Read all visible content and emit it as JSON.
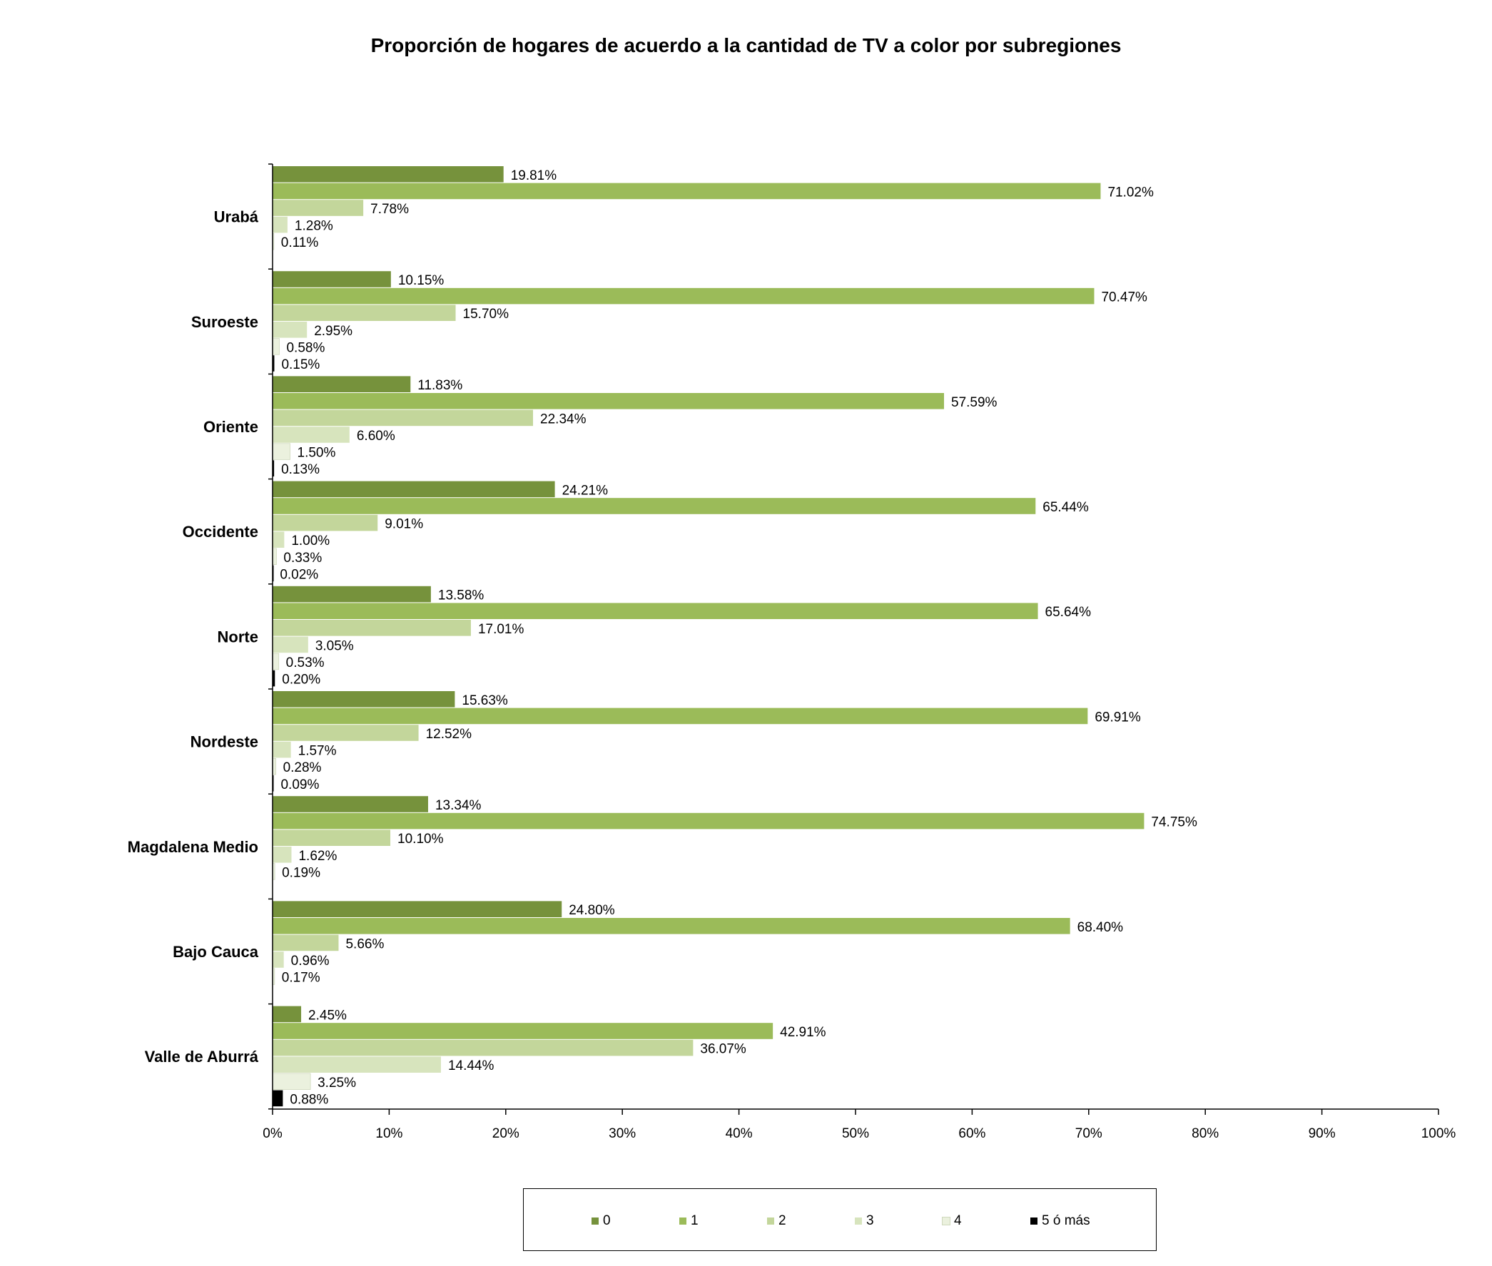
{
  "chart_data": {
    "type": "bar",
    "orientation": "horizontal",
    "title": "Proporción de hogares de acuerdo a la cantidad de TV a color por subregiones",
    "xlabel": "",
    "ylabel": "",
    "xlim": [
      0,
      100
    ],
    "x_ticks": [
      "0%",
      "10%",
      "20%",
      "30%",
      "40%",
      "50%",
      "60%",
      "70%",
      "80%",
      "90%",
      "100%"
    ],
    "grid": false,
    "legend_position": "bottom",
    "categories": [
      "Urabá",
      "Suroeste",
      "Oriente",
      "Occidente",
      "Norte",
      "Nordeste",
      "Magdalena Medio",
      "Bajo Cauca",
      "Valle de Aburrá"
    ],
    "series": [
      {
        "name": "0",
        "color": "#76923C",
        "values": [
          19.81,
          10.15,
          11.83,
          24.21,
          13.58,
          15.63,
          13.34,
          24.8,
          2.45
        ],
        "labels": [
          "19.81%",
          "10.15%",
          "11.83%",
          "24.21%",
          "13.58%",
          "15.63%",
          "13.34%",
          "24.80%",
          "2.45%"
        ]
      },
      {
        "name": "1",
        "color": "#9BBB59",
        "values": [
          71.02,
          70.47,
          57.59,
          65.44,
          65.64,
          69.91,
          74.75,
          68.4,
          42.91
        ],
        "labels": [
          "71.02%",
          "70.47%",
          "57.59%",
          "65.44%",
          "65.64%",
          "69.91%",
          "74.75%",
          "68.40%",
          "42.91%"
        ]
      },
      {
        "name": "2",
        "color": "#C3D69B",
        "values": [
          7.78,
          15.7,
          22.34,
          9.01,
          17.01,
          12.52,
          10.1,
          5.66,
          36.07
        ],
        "labels": [
          "7.78%",
          "15.70%",
          "22.34%",
          "9.01%",
          "17.01%",
          "12.52%",
          "10.10%",
          "5.66%",
          "36.07%"
        ]
      },
      {
        "name": "3",
        "color": "#D7E4BD",
        "values": [
          1.28,
          2.95,
          6.6,
          1.0,
          3.05,
          1.57,
          1.62,
          0.96,
          14.44
        ],
        "labels": [
          "1.28%",
          "2.95%",
          "6.60%",
          "1.00%",
          "3.05%",
          "1.57%",
          "1.62%",
          "0.96%",
          "14.44%"
        ]
      },
      {
        "name": "4",
        "color": "#EBF1DE",
        "values": [
          0.11,
          0.58,
          1.5,
          0.33,
          0.53,
          0.28,
          0.19,
          0.17,
          3.25
        ],
        "labels": [
          "0.11%",
          "0.58%",
          "1.50%",
          "0.33%",
          "0.53%",
          "0.28%",
          "0.19%",
          "0.17%",
          "3.25%"
        ]
      },
      {
        "name": "5 ó más",
        "color": "#000000",
        "values": [
          null,
          0.15,
          0.13,
          0.02,
          0.2,
          0.09,
          null,
          null,
          0.88
        ],
        "labels": [
          null,
          "0.15%",
          "0.13%",
          "0.02%",
          "0.20%",
          "0.09%",
          null,
          null,
          "0.88%"
        ]
      }
    ]
  }
}
